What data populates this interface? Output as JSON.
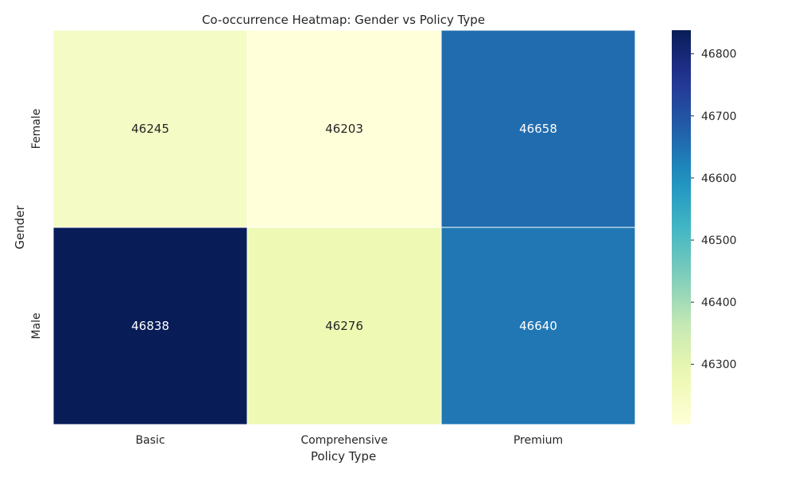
{
  "chart_data": {
    "type": "heatmap",
    "title": "Co-occurrence Heatmap: Gender vs Policy Type",
    "xlabel": "Policy Type",
    "ylabel": "Gender",
    "x_categories": [
      "Basic",
      "Comprehensive",
      "Premium"
    ],
    "y_categories": [
      "Female",
      "Male"
    ],
    "values": [
      [
        46245,
        46203,
        46658
      ],
      [
        46838,
        46276,
        46640
      ]
    ],
    "colormap": "YlGnBu",
    "colorbar": {
      "range": [
        46203,
        46838
      ],
      "ticks": [
        46300,
        46400,
        46500,
        46600,
        46700,
        46800
      ]
    },
    "grid": false
  }
}
